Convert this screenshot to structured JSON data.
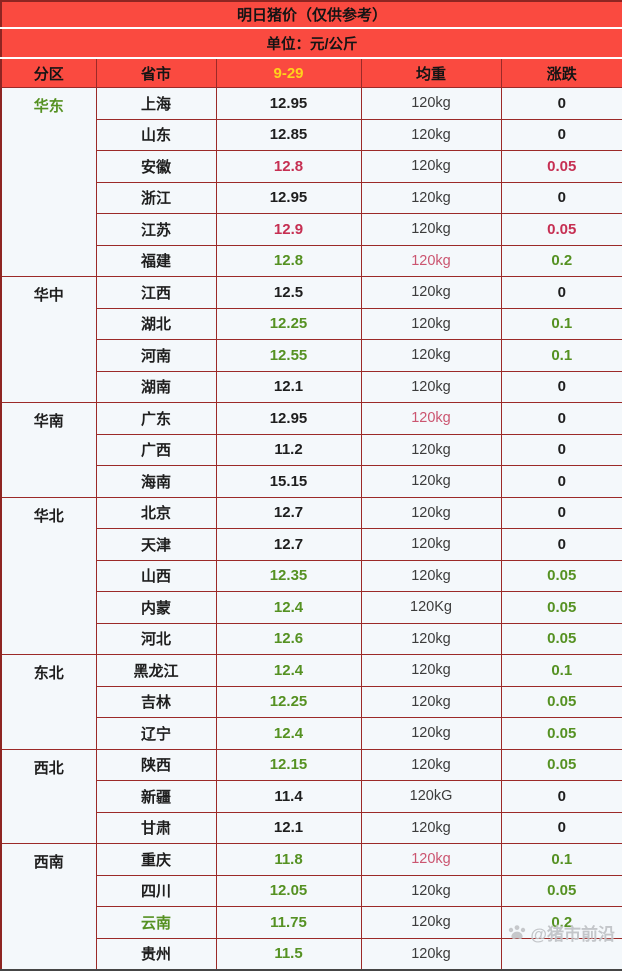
{
  "chart_data": {
    "type": "table",
    "title": "明日猪价（仅供参考）",
    "unit_label": "单位：元/公斤",
    "columns": [
      "分区",
      "省市",
      "9-29",
      "均重",
      "涨跌"
    ],
    "regions": [
      {
        "name": "华东",
        "color": "green",
        "rows": [
          {
            "province": "上海",
            "price": "12.95",
            "weight": "120kg",
            "change": "0"
          },
          {
            "province": "山东",
            "price": "12.85",
            "weight": "120kg",
            "change": "0"
          },
          {
            "province": "安徽",
            "price": "12.8",
            "price_color": "red",
            "weight": "120kg",
            "change": "0.05",
            "change_color": "red"
          },
          {
            "province": "浙江",
            "price": "12.95",
            "weight": "120kg",
            "change": "0"
          },
          {
            "province": "江苏",
            "price": "12.9",
            "price_color": "red",
            "weight": "120kg",
            "change": "0.05",
            "change_color": "red"
          },
          {
            "province": "福建",
            "price": "12.8",
            "price_color": "green",
            "weight": "120kg",
            "weight_color": "pink",
            "change": "0.2",
            "change_color": "green"
          }
        ]
      },
      {
        "name": "华中",
        "color": "black",
        "rows": [
          {
            "province": "江西",
            "price": "12.5",
            "weight": "120kg",
            "change": "0"
          },
          {
            "province": "湖北",
            "price": "12.25",
            "price_color": "green",
            "weight": "120kg",
            "change": "0.1",
            "change_color": "green"
          },
          {
            "province": "河南",
            "price": "12.55",
            "price_color": "green",
            "weight": "120kg",
            "change": "0.1",
            "change_color": "green"
          },
          {
            "province": "湖南",
            "price": "12.1",
            "weight": "120kg",
            "change": "0"
          }
        ]
      },
      {
        "name": "华南",
        "color": "black",
        "rows": [
          {
            "province": "广东",
            "price": "12.95",
            "weight": "120kg",
            "weight_color": "pink",
            "change": "0"
          },
          {
            "province": "广西",
            "price": "11.2",
            "weight": "120kg",
            "change": "0"
          },
          {
            "province": "海南",
            "price": "15.15",
            "weight": "120kg",
            "change": "0"
          }
        ]
      },
      {
        "name": "华北",
        "color": "black",
        "rows": [
          {
            "province": "北京",
            "price": "12.7",
            "weight": "120kg",
            "change": "0"
          },
          {
            "province": "天津",
            "price": "12.7",
            "weight": "120kg",
            "change": "0"
          },
          {
            "province": "山西",
            "price": "12.35",
            "price_color": "green",
            "weight": "120kg",
            "change": "0.05",
            "change_color": "green"
          },
          {
            "province": "内蒙",
            "price": "12.4",
            "price_color": "green",
            "weight": "120Kg",
            "change": "0.05",
            "change_color": "green"
          },
          {
            "province": "河北",
            "price": "12.6",
            "price_color": "green",
            "weight": "120kg",
            "change": "0.05",
            "change_color": "green"
          }
        ]
      },
      {
        "name": "东北",
        "color": "black",
        "rows": [
          {
            "province": "黑龙江",
            "price": "12.4",
            "price_color": "green",
            "weight": "120kg",
            "change": "0.1",
            "change_color": "green"
          },
          {
            "province": "吉林",
            "price": "12.25",
            "price_color": "green",
            "weight": "120kg",
            "change": "0.05",
            "change_color": "green"
          },
          {
            "province": "辽宁",
            "price": "12.4",
            "price_color": "green",
            "weight": "120kg",
            "change": "0.05",
            "change_color": "green"
          }
        ]
      },
      {
        "name": "西北",
        "color": "black",
        "rows": [
          {
            "province": "陕西",
            "price": "12.15",
            "price_color": "green",
            "weight": "120kg",
            "change": "0.05",
            "change_color": "green"
          },
          {
            "province": "新疆",
            "price": "11.4",
            "weight": "120kG",
            "change": "0"
          },
          {
            "province": "甘肃",
            "price": "12.1",
            "weight": "120kg",
            "change": "0"
          }
        ]
      },
      {
        "name": "西南",
        "color": "black",
        "rows": [
          {
            "province": "重庆",
            "price": "11.8",
            "price_color": "green",
            "weight": "120kg",
            "weight_color": "pink",
            "change": "0.1",
            "change_color": "green"
          },
          {
            "province": "四川",
            "price": "12.05",
            "price_color": "green",
            "weight": "120kg",
            "change": "0.05",
            "change_color": "green"
          },
          {
            "province": "云南",
            "province_color": "green",
            "price": "11.75",
            "price_color": "green",
            "weight": "120kg",
            "change": "0.2",
            "change_color": "green"
          },
          {
            "province": "贵州",
            "price": "11.5",
            "price_color": "green",
            "weight": "120kg",
            "change": ""
          }
        ]
      }
    ]
  },
  "watermark": {
    "icon": "paw-icon",
    "text": "@猪市前沿"
  },
  "colors": {
    "header_bg": "#fa4a40",
    "date_yellow": "#ffd21c",
    "border": "#9b2a28",
    "cell_bg": "#f4f8fb",
    "black": "#1e1e1e",
    "green": "#559122",
    "red": "#c62f52",
    "pink": "#cb5570",
    "gray": "#3c3c3c"
  }
}
